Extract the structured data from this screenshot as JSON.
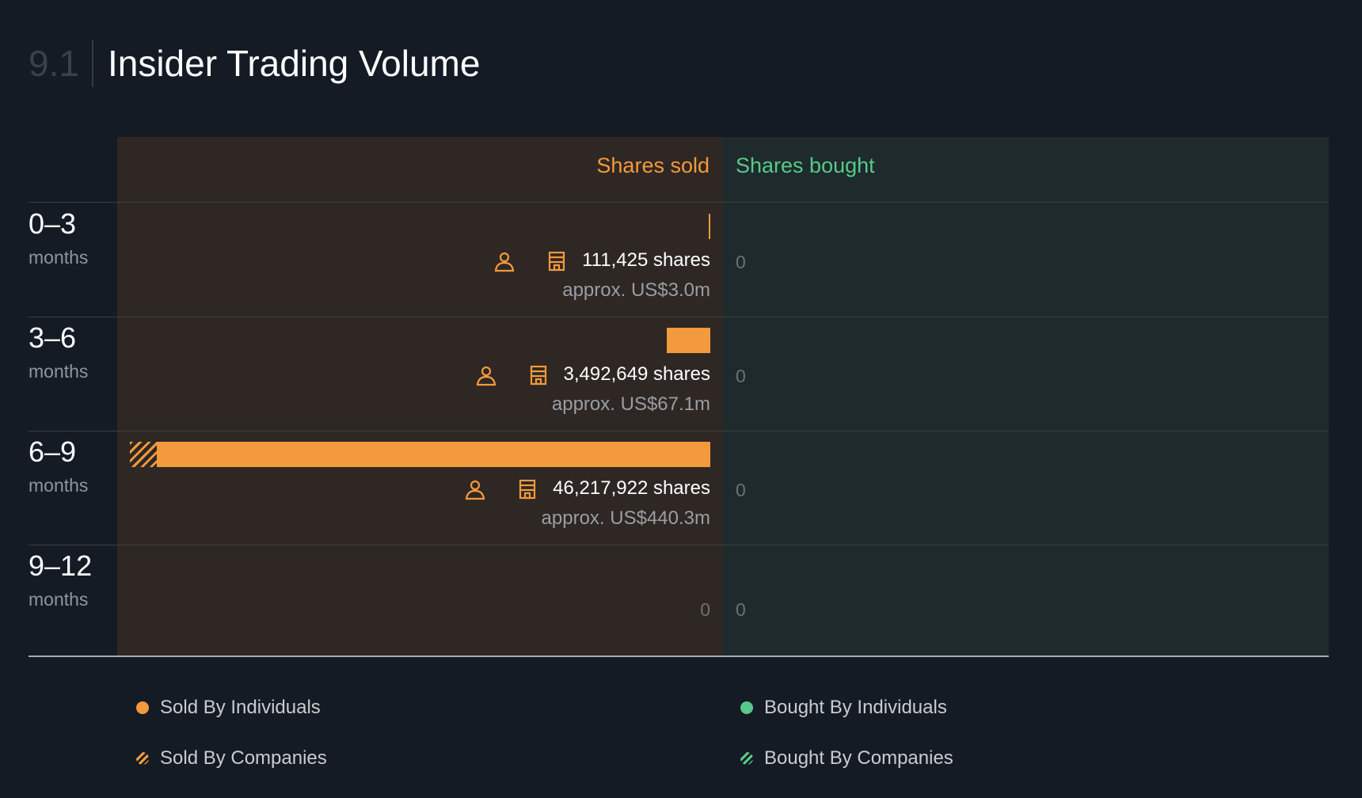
{
  "header": {
    "section_number": "9.1",
    "title": "Insider Trading Volume"
  },
  "colors": {
    "sold": "#f39a3c",
    "bought": "#58c98a",
    "background": "#151b24"
  },
  "chart_data": {
    "type": "bar",
    "title": "Insider Trading Volume",
    "orientation": "horizontal",
    "column_headers": {
      "sold": "Shares sold",
      "bought": "Shares bought"
    },
    "categories": [
      "0–3 months",
      "3–6 months",
      "6–9 months",
      "9–12 months"
    ],
    "series": [
      {
        "name": "Sold By Individuals",
        "values": [
          111425,
          3492649,
          44100000,
          0
        ]
      },
      {
        "name": "Sold By Companies",
        "values": [
          0,
          0,
          2117922,
          0
        ]
      },
      {
        "name": "Bought By Individuals",
        "values": [
          0,
          0,
          0,
          0
        ]
      },
      {
        "name": "Bought By Companies",
        "values": [
          0,
          0,
          0,
          0
        ]
      }
    ],
    "rows": [
      {
        "range": "0–3",
        "unit": "months",
        "sold_total": 111425,
        "sold_label": "111,425 shares",
        "approx_label": "approx. US$3.0m",
        "bought_label": "0",
        "show_icons": true
      },
      {
        "range": "3–6",
        "unit": "months",
        "sold_total": 3492649,
        "sold_label": "3,492,649 shares",
        "approx_label": "approx. US$67.1m",
        "bought_label": "0",
        "show_icons": true
      },
      {
        "range": "6–9",
        "unit": "months",
        "sold_total": 46217922,
        "sold_companies": 2117922,
        "sold_label": "46,217,922 shares",
        "approx_label": "approx. US$440.3m",
        "bought_label": "0",
        "show_icons": true
      },
      {
        "range": "9–12",
        "unit": "months",
        "sold_total": 0,
        "sold_label": "0",
        "approx_label": "",
        "bought_label": "0",
        "show_icons": false
      }
    ],
    "legend": [
      {
        "label": "Sold By Individuals",
        "style": "solid",
        "color": "#f39a3c"
      },
      {
        "label": "Sold By Companies",
        "style": "hatched",
        "color": "#f39a3c"
      },
      {
        "label": "Bought By Individuals",
        "style": "solid",
        "color": "#58c98a"
      },
      {
        "label": "Bought By Companies",
        "style": "hatched",
        "color": "#58c98a"
      }
    ],
    "icons": [
      "person-icon",
      "building-icon"
    ]
  }
}
